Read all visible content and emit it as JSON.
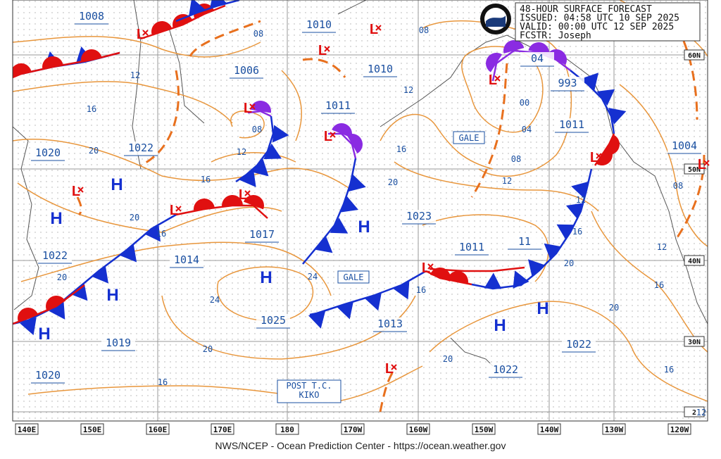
{
  "header": {
    "lines": [
      "48-HOUR SURFACE FORECAST",
      "ISSUED: 04:58 UTC 10 SEP 2025",
      "VALID:  00:00 UTC 12 SEP 2025",
      "FCSTR:  Joseph"
    ]
  },
  "footer": "NWS/NCEP - Ocean Prediction Center - https://ocean.weather.gov",
  "longitudes": [
    "140E",
    "150E",
    "160E",
    "170E",
    "180",
    "170W",
    "160W",
    "150W",
    "140W",
    "130W",
    "120W"
  ],
  "latitudes": [
    "60N",
    "50N",
    "40N",
    "30N",
    "2"
  ],
  "pressures": [
    "1008",
    "1010",
    "1006",
    "1010",
    "1011",
    "1020",
    "1022",
    "1017",
    "1014",
    "1022",
    "1019",
    "1020",
    "1025",
    "1013",
    "1023",
    "1011",
    "11",
    "1022",
    "1022",
    "993",
    "04",
    "1011",
    "1004"
  ],
  "isobar_labels": [
    "08",
    "12",
    "16",
    "20",
    "12",
    "08",
    "16",
    "20",
    "16",
    "20",
    "24",
    "24",
    "20",
    "16",
    "16",
    "20",
    "16",
    "20",
    "08",
    "12",
    "00",
    "04",
    "08",
    "12",
    "12",
    "16",
    "20",
    "20",
    "16",
    "12",
    "08",
    "16",
    "12"
  ],
  "highs": [
    "H",
    "H",
    "H",
    "H",
    "H",
    "H",
    "H",
    "H"
  ],
  "lows": [
    "L",
    "L",
    "L",
    "L",
    "L",
    "L",
    "L",
    "L",
    "L",
    "L",
    "L",
    "L",
    "L"
  ],
  "warnings": [
    "GALE",
    "GALE"
  ],
  "post_tc": [
    "POST T.C.",
    "KIKO"
  ]
}
